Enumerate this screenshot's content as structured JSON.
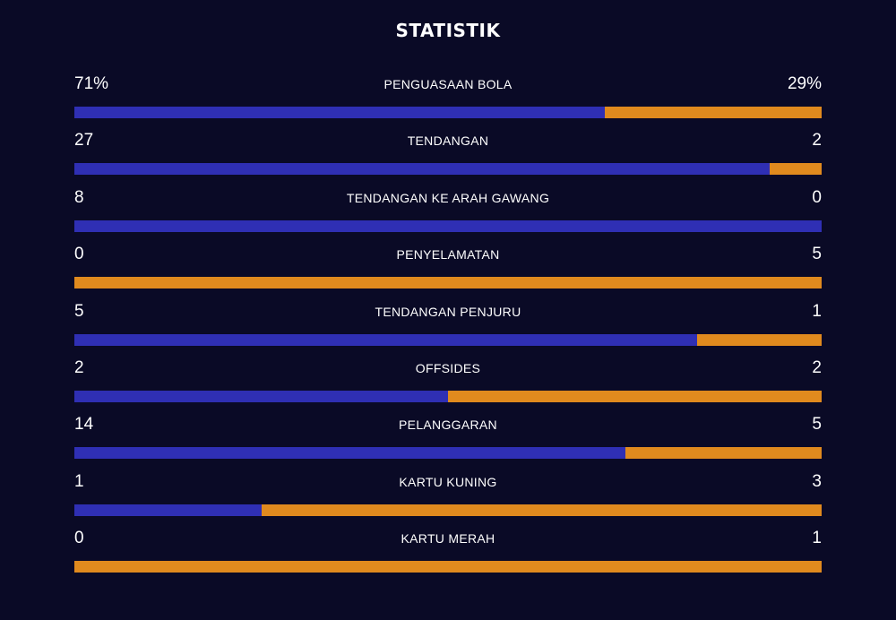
{
  "title": "STATISTIK",
  "colors": {
    "background": "#0a0a26",
    "home": "#2f2fb4",
    "away": "#e08a1e"
  },
  "stats": [
    {
      "label": "PENGUASAAN BOLA",
      "home": "71%",
      "away": "29%",
      "home_value": 71,
      "away_value": 29
    },
    {
      "label": "TENDANGAN",
      "home": "27",
      "away": "2",
      "home_value": 27,
      "away_value": 2
    },
    {
      "label": "TENDANGAN KE ARAH GAWANG",
      "home": "8",
      "away": "0",
      "home_value": 8,
      "away_value": 0
    },
    {
      "label": "PENYELAMATAN",
      "home": "0",
      "away": "5",
      "home_value": 0,
      "away_value": 5
    },
    {
      "label": "TENDANGAN PENJURU",
      "home": "5",
      "away": "1",
      "home_value": 5,
      "away_value": 1
    },
    {
      "label": "OFFSIDES",
      "home": "2",
      "away": "2",
      "home_value": 2,
      "away_value": 2
    },
    {
      "label": "PELANGGARAN",
      "home": "14",
      "away": "5",
      "home_value": 14,
      "away_value": 5
    },
    {
      "label": "KARTU KUNING",
      "home": "1",
      "away": "3",
      "home_value": 1,
      "away_value": 3
    },
    {
      "label": "KARTU MERAH",
      "home": "0",
      "away": "1",
      "home_value": 0,
      "away_value": 1
    }
  ]
}
